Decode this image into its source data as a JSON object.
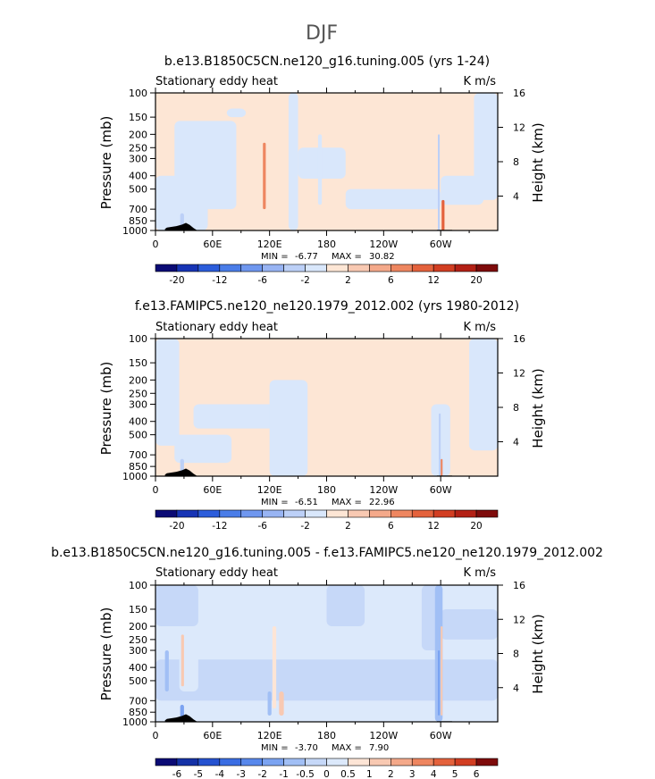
{
  "figure": {
    "title": "DJF"
  },
  "colorbars": {
    "abs_labels": [
      "-20",
      "-12",
      "-6",
      "-2",
      "2",
      "6",
      "12",
      "20"
    ],
    "diff_labels": [
      "-6",
      "-5",
      "-4",
      "-3",
      "-2",
      "-1",
      "-0.5",
      "0",
      "0.5",
      "1",
      "2",
      "3",
      "4",
      "5",
      "6"
    ],
    "abs_colors": [
      "#0b0b75",
      "#1734b5",
      "#2c5ddb",
      "#4a7de8",
      "#6f97ef",
      "#98b4f3",
      "#bcd0f7",
      "#d9e7fb",
      "#fde6d5",
      "#f8c9b2",
      "#f4a98a",
      "#ee8660",
      "#e4623c",
      "#d23e22",
      "#b32015",
      "#7e0b0b"
    ],
    "diff_colors": [
      "#0b0b75",
      "#1431a6",
      "#2552d0",
      "#3a6de3",
      "#5888ec",
      "#7ba3f1",
      "#a1bff5",
      "#c6d8f8",
      "#dce9fb",
      "#fde5d6",
      "#f8c9b2",
      "#f4a98a",
      "#ee8660",
      "#e4623c",
      "#d23e22",
      "#7e0b0b"
    ]
  },
  "chart_data": [
    {
      "type": "heatmap",
      "title": "b.e13.B1850C5CN.ne120_g16.tuning.005 (yrs 1-24)",
      "left_string": "Stationary eddy heat",
      "right_string": "K m/s",
      "xlabel": "",
      "ylabel": "Pressure (mb)",
      "y2label": "Height (km)",
      "xticklabels": [
        "0",
        "60E",
        "120E",
        "180",
        "120W",
        "60W"
      ],
      "xlim": [
        0,
        360
      ],
      "yticklabels": [
        "100",
        "150",
        "200",
        "250",
        "300",
        "400",
        "500",
        "700",
        "850",
        "1000"
      ],
      "ylim": [
        1000,
        100
      ],
      "y2ticklabels": [
        "4",
        "8",
        "12",
        "16"
      ],
      "min_label": "MIN =",
      "min_value": "-6.77",
      "max_label": "MAX =",
      "max_value": "30.82",
      "levels": [
        -20,
        -16,
        -12,
        -8,
        -6,
        -4,
        -2,
        0,
        2,
        4,
        6,
        8,
        12,
        16,
        20
      ],
      "background_value": 1,
      "features": [
        {
          "lon": [
            0,
            360
          ],
          "p": [
            200,
            600
          ],
          "value": 1
        },
        {
          "lon": [
            20,
            85
          ],
          "p": [
            160,
            700
          ],
          "value": -1
        },
        {
          "lon": [
            75,
            95
          ],
          "p": [
            130,
            150
          ],
          "value": -1
        },
        {
          "lon": [
            0,
            55
          ],
          "p": [
            400,
            1000
          ],
          "value": -1
        },
        {
          "lon": [
            150,
            200
          ],
          "p": [
            250,
            420
          ],
          "value": -1
        },
        {
          "lon": [
            200,
            300
          ],
          "p": [
            500,
            700
          ],
          "value": -1
        },
        {
          "lon": [
            300,
            345
          ],
          "p": [
            400,
            650
          ],
          "value": -1
        },
        {
          "lon": [
            335,
            360
          ],
          "p": [
            100,
            600
          ],
          "value": -1
        },
        {
          "lon": [
            113,
            116
          ],
          "p": [
            230,
            700
          ],
          "value": 7
        },
        {
          "lon": [
            140,
            150
          ],
          "p": [
            100,
            1000
          ],
          "value": -1
        },
        {
          "lon": [
            171,
            175
          ],
          "p": [
            200,
            650
          ],
          "value": -1
        },
        {
          "lon": [
            297,
            299
          ],
          "p": [
            200,
            1000
          ],
          "value": -3
        },
        {
          "lon": [
            301,
            304
          ],
          "p": [
            600,
            1000
          ],
          "value": 8
        },
        {
          "lon": [
            26,
            30
          ],
          "p": [
            750,
            950
          ],
          "value": -3
        }
      ]
    },
    {
      "type": "heatmap",
      "title": "f.e13.FAMIPC5.ne120_ne120.1979_2012.002 (yrs 1980-2012)",
      "left_string": "Stationary eddy heat",
      "right_string": "K m/s",
      "xlabel": "",
      "ylabel": "Pressure (mb)",
      "y2label": "Height (km)",
      "xticklabels": [
        "0",
        "60E",
        "120E",
        "180",
        "120W",
        "60W"
      ],
      "xlim": [
        0,
        360
      ],
      "yticklabels": [
        "100",
        "150",
        "200",
        "250",
        "300",
        "400",
        "500",
        "700",
        "850",
        "1000"
      ],
      "ylim": [
        1000,
        100
      ],
      "y2ticklabels": [
        "4",
        "8",
        "12",
        "16"
      ],
      "min_label": "MIN =",
      "min_value": "-6.51",
      "max_label": "MAX =",
      "max_value": "22.96",
      "levels": [
        -20,
        -16,
        -12,
        -8,
        -6,
        -4,
        -2,
        0,
        2,
        4,
        6,
        8,
        12,
        16,
        20
      ],
      "background_value": 1,
      "features": [
        {
          "lon": [
            0,
            25
          ],
          "p": [
            100,
            600
          ],
          "value": -1
        },
        {
          "lon": [
            20,
            80
          ],
          "p": [
            500,
            800
          ],
          "value": -1
        },
        {
          "lon": [
            40,
            140
          ],
          "p": [
            300,
            450
          ],
          "value": -1
        },
        {
          "lon": [
            120,
            160
          ],
          "p": [
            200,
            1000
          ],
          "value": -1
        },
        {
          "lon": [
            330,
            360
          ],
          "p": [
            100,
            650
          ],
          "value": -1
        },
        {
          "lon": [
            290,
            310
          ],
          "p": [
            300,
            1000
          ],
          "value": -1
        },
        {
          "lon": [
            298,
            300
          ],
          "p": [
            350,
            1000
          ],
          "value": -3
        },
        {
          "lon": [
            300,
            302
          ],
          "p": [
            750,
            1000
          ],
          "value": 7
        },
        {
          "lon": [
            26,
            30
          ],
          "p": [
            750,
            950
          ],
          "value": -3
        }
      ]
    },
    {
      "type": "heatmap",
      "title": "b.e13.B1850C5CN.ne120_g16.tuning.005 - f.e13.FAMIPC5.ne120_ne120.1979_2012.002",
      "left_string": "Stationary eddy heat",
      "right_string": "K m/s",
      "xlabel": "",
      "ylabel": "Pressure (mb)",
      "y2label": "Height (km)",
      "xticklabels": [
        "0",
        "60E",
        "120E",
        "180",
        "120W",
        "60W"
      ],
      "xlim": [
        0,
        360
      ],
      "yticklabels": [
        "100",
        "150",
        "200",
        "250",
        "300",
        "400",
        "500",
        "700",
        "850",
        "1000"
      ],
      "ylim": [
        1000,
        100
      ],
      "y2ticklabels": [
        "4",
        "8",
        "12",
        "16"
      ],
      "min_label": "MIN =",
      "min_value": "-3.70",
      "max_label": "MAX =",
      "max_value": "7.90",
      "levels": [
        -6,
        -5,
        -4,
        -3,
        -2,
        -1,
        -0.5,
        0,
        0.5,
        1,
        2,
        3,
        4,
        5,
        6
      ],
      "background_value": 0.2,
      "features": [
        {
          "lon": [
            0,
            360
          ],
          "p": [
            350,
            700
          ],
          "value": -0.2
        },
        {
          "lon": [
            0,
            45
          ],
          "p": [
            100,
            200
          ],
          "value": -0.2
        },
        {
          "lon": [
            180,
            220
          ],
          "p": [
            100,
            200
          ],
          "value": -0.2
        },
        {
          "lon": [
            280,
            300
          ],
          "p": [
            100,
            300
          ],
          "value": -0.2
        },
        {
          "lon": [
            300,
            360
          ],
          "p": [
            150,
            250
          ],
          "value": -0.2
        },
        {
          "lon": [
            25,
            45
          ],
          "p": [
            200,
            600
          ],
          "value": 0.3
        },
        {
          "lon": [
            27,
            30
          ],
          "p": [
            230,
            550
          ],
          "value": 1.5
        },
        {
          "lon": [
            123,
            127
          ],
          "p": [
            200,
            800
          ],
          "value": 0.7
        },
        {
          "lon": [
            130,
            135
          ],
          "p": [
            600,
            900
          ],
          "value": 1.5
        },
        {
          "lon": [
            118,
            122
          ],
          "p": [
            600,
            900
          ],
          "value": -0.7
        },
        {
          "lon": [
            294,
            302
          ],
          "p": [
            100,
            1000
          ],
          "value": -0.7
        },
        {
          "lon": [
            297,
            299
          ],
          "p": [
            300,
            900
          ],
          "value": -2
        },
        {
          "lon": [
            300,
            302
          ],
          "p": [
            200,
            900
          ],
          "value": 1.5
        },
        {
          "lon": [
            10,
            14
          ],
          "p": [
            300,
            600
          ],
          "value": -0.7
        },
        {
          "lon": [
            26,
            30
          ],
          "p": [
            750,
            950
          ],
          "value": -1.5
        }
      ]
    }
  ]
}
